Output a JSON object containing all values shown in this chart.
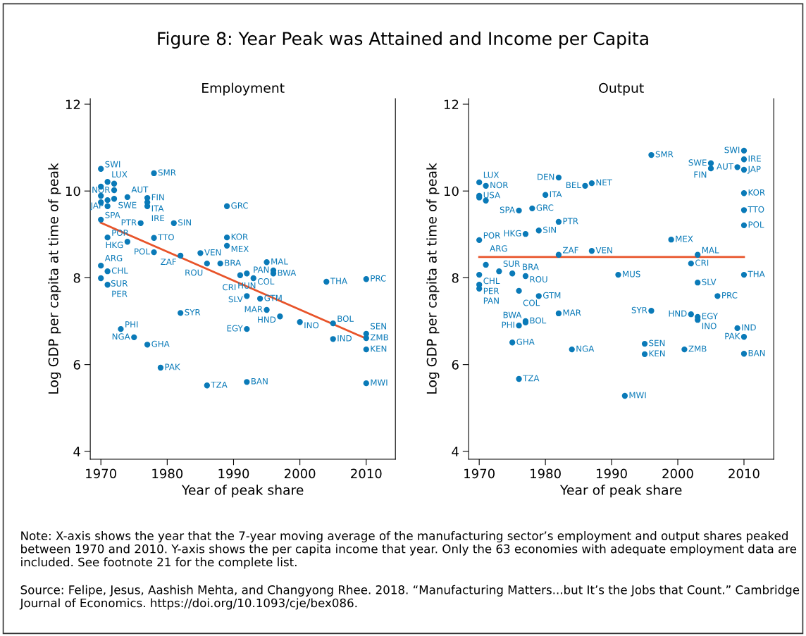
{
  "chart_data": [
    {
      "type": "scatter",
      "title": "Figure 8: Year Peak was Attained and Income per Capita",
      "subtitle": "Employment",
      "xlabel": "Year of peak share",
      "ylabel": "Log GDP per capita at time of peak",
      "xlim": [
        1968.4,
        2014.4
      ],
      "ylim": [
        3.82,
        12.13
      ],
      "xticks": [
        1970,
        1980,
        1990,
        2000,
        2010
      ],
      "yticks": [
        4,
        6,
        8,
        10,
        12
      ],
      "grid": false,
      "series": [
        {
          "type": "scatter",
          "color": "#0a7ab8",
          "marker": "circle",
          "x": [
            1970,
            1978,
            1971,
            1972,
            1970,
            1972,
            1970,
            1970,
            1971,
            1972,
            1974,
            1977,
            1977,
            1971,
            1977,
            1989,
            1970,
            1976,
            1981,
            1971,
            1974,
            1978,
            1989,
            1989,
            1978,
            1982,
            1985,
            1986,
            1988,
            1970,
            1971,
            1970,
            1971,
            1995,
            1996,
            1996,
            1991,
            1992,
            1993,
            2004,
            2010,
            1992,
            1994,
            1995,
            1997,
            2000,
            2005,
            1992,
            1982,
            1973,
            1975,
            1977,
            2005,
            2010,
            2010,
            2010,
            1979,
            1986,
            1992,
            2010
          ],
          "values": [
            10.51,
            10.41,
            10.21,
            10.17,
            10.1,
            10.02,
            9.89,
            9.74,
            9.79,
            9.82,
            9.86,
            9.84,
            9.74,
            9.65,
            9.65,
            9.65,
            9.34,
            9.26,
            9.26,
            8.93,
            8.83,
            8.92,
            8.93,
            8.74,
            8.59,
            8.51,
            8.57,
            8.33,
            8.33,
            8.28,
            8.15,
            7.99,
            7.84,
            8.36,
            8.17,
            8.1,
            8.06,
            8.1,
            7.99,
            7.91,
            7.97,
            7.58,
            7.52,
            7.26,
            7.11,
            6.98,
            6.95,
            6.82,
            7.19,
            6.82,
            6.63,
            6.46,
            6.59,
            6.71,
            6.61,
            6.35,
            5.93,
            5.52,
            5.6,
            5.57
          ],
          "value_labels": [
            "SWI",
            "SMR",
            "LUX",
            "NOR",
            null,
            "SWE",
            null,
            null,
            null,
            null,
            "AUT",
            "FIN",
            "ITA",
            "JAP",
            "IRE",
            "GRC",
            "SPA",
            "PTR",
            "SIN",
            "POR",
            "HKG",
            "TTO",
            "KOR",
            "MEX",
            "POL",
            "ZAF",
            "VEN",
            "ROU",
            "BRA",
            "ARG",
            "CHL",
            "SUR",
            "PER",
            "MAL",
            "PAN",
            "BWA",
            "CRI",
            "HUN",
            "COL",
            "THA",
            "PRC",
            "SLV",
            "GTM",
            "MAR",
            "HND",
            "INO",
            "BOL",
            "EGY",
            "SYR",
            "PHI",
            "NGA",
            "GHA",
            "IND",
            "SEN",
            "ZMB",
            "KEN",
            "PAK",
            "TZA",
            "BAN",
            "MWI"
          ]
        },
        {
          "type": "line",
          "color": "#e8542a",
          "x": [
            1970,
            2010
          ],
          "values": [
            9.27,
            6.6
          ]
        }
      ],
      "annotations": [
        "Note: X-axis shows the year that the 7-year moving average of the manufacturing sector’s employment and output shares peaked between 1970 and 2010. Y-axis shows the per capita income that year. Only the 63 economies with adequate employment data are included. See footnote 21 for the complete list.",
        "Source: Felipe, Jesus, Aashish Mehta, and Changyong Rhee. 2018. “Manufacturing Matters...but It’s the Jobs that Count.” Cambridge Journal of Economics. https://doi.org/10.1093/cje/bex086."
      ]
    },
    {
      "type": "scatter",
      "subtitle": "Output",
      "xlabel": "Year of peak share",
      "ylabel": "Log GDP per capita at time of peak",
      "xlim": [
        1968.4,
        2014.5
      ],
      "ylim": [
        3.82,
        12.13
      ],
      "xticks": [
        1970,
        1980,
        1990,
        2000,
        2010
      ],
      "yticks": [
        4,
        6,
        8,
        10,
        12
      ],
      "grid": false,
      "series": [
        {
          "type": "scatter",
          "color": "#0a7ab8",
          "marker": "circle",
          "x": [
            1970,
            1971,
            1982,
            1987,
            1986,
            1980,
            1970,
            1970,
            1971,
            1976,
            1978,
            1982,
            1979,
            1977,
            1970,
            1987,
            1982,
            1971,
            1973,
            1975,
            1977,
            1970,
            1970,
            1970,
            1976,
            1979,
            1982,
            1991,
            1996,
            2005,
            2005,
            2009,
            2010,
            2010,
            2010,
            2010,
            2010,
            2010,
            1999,
            2003,
            2002,
            2003,
            2006,
            2010,
            1996,
            2002,
            2003,
            2003,
            2009,
            2010,
            2010,
            1977,
            1977,
            1976,
            1975,
            1984,
            1995,
            1995,
            2001,
            1976,
            1992
          ],
          "values": [
            10.2,
            10.12,
            10.31,
            10.18,
            10.12,
            9.91,
            9.89,
            9.85,
            9.78,
            9.55,
            9.6,
            9.29,
            9.09,
            9.01,
            8.87,
            8.62,
            8.53,
            8.3,
            8.15,
            8.1,
            8.04,
            8.07,
            7.84,
            7.75,
            7.7,
            7.58,
            7.18,
            8.07,
            10.83,
            10.64,
            10.52,
            10.55,
            10.93,
            10.73,
            10.49,
            9.95,
            9.56,
            9.21,
            8.88,
            8.53,
            8.33,
            7.89,
            7.58,
            8.07,
            7.24,
            7.16,
            7.1,
            7.03,
            6.84,
            6.64,
            6.25,
            7.0,
            6.97,
            6.9,
            6.51,
            6.35,
            6.48,
            6.24,
            6.35,
            5.67,
            5.28
          ],
          "value_labels": [
            "LUX",
            "NOR",
            "DEN",
            "NET",
            "BEL",
            "ITA",
            "USA",
            null,
            null,
            "SPA",
            "GRC",
            "PTR",
            "SIN",
            "HKG",
            "POR",
            "VEN",
            "ZAF",
            "ARG",
            "SUR",
            "BRA",
            "ROU",
            "CHL",
            "PER",
            "PAN",
            "COL",
            "GTM",
            "MAR",
            "MUS",
            "SMR",
            "SWE",
            "FIN",
            "AUT",
            "SWI",
            "IRE",
            "JAP",
            "KOR",
            "TTO",
            "POL",
            "MEX",
            "MAL",
            "CRI",
            "SLV",
            "PRC",
            "THA",
            "SYR",
            "HND",
            "EGY",
            "INO",
            "IND",
            "PAK",
            "BAN",
            "BOL",
            "BWA",
            "PHI",
            "GHA",
            "NGA",
            "SEN",
            "KEN",
            "ZMB",
            "TZA",
            "MWI"
          ]
        },
        {
          "type": "line",
          "color": "#e8542a",
          "x": [
            1970,
            2010
          ],
          "values": [
            8.48,
            8.48
          ]
        }
      ]
    }
  ]
}
